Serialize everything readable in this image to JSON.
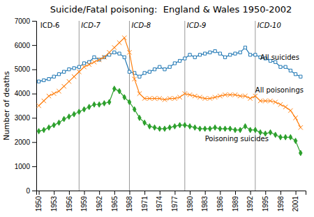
{
  "chart_data": {
    "type": "line",
    "title": "Suicide/Fatal poisoning:  England & Wales 1950-2002",
    "y_label": "Number of deaths",
    "xlim": [
      1949.5,
      2003
    ],
    "xticks": [
      1950,
      1953,
      1956,
      1959,
      1962,
      1965,
      1968,
      1971,
      1974,
      1977,
      1980,
      1983,
      1986,
      1989,
      1992,
      1995,
      1998,
      2001
    ],
    "ylim": [
      0,
      7000
    ],
    "yticks": [
      0,
      1000,
      2000,
      3000,
      4000,
      5000,
      6000,
      7000
    ],
    "grid": false,
    "x": [
      1950,
      1951,
      1952,
      1953,
      1954,
      1955,
      1956,
      1957,
      1958,
      1959,
      1960,
      1961,
      1962,
      1963,
      1964,
      1965,
      1966,
      1967,
      1968,
      1969,
      1970,
      1971,
      1972,
      1973,
      1974,
      1975,
      1976,
      1977,
      1978,
      1979,
      1980,
      1981,
      1982,
      1983,
      1984,
      1985,
      1986,
      1987,
      1988,
      1989,
      1990,
      1991,
      1992,
      1993,
      1994,
      1995,
      1996,
      1997,
      1998,
      1999,
      2000,
      2001,
      2002
    ],
    "series": [
      {
        "marker": "square",
        "values": [
          4500,
          4550,
          4600,
          4700,
          4800,
          4900,
          5000,
          5050,
          5100,
          5250,
          5300,
          5500,
          5400,
          5500,
          5600,
          5700,
          5650,
          5500,
          4900,
          4850,
          4700,
          4850,
          4900,
          5000,
          5100,
          5000,
          5100,
          5250,
          5350,
          5450,
          5600,
          5500,
          5600,
          5650,
          5700,
          5750,
          5650,
          5500,
          5600,
          5650,
          5700,
          5900,
          5600,
          5600,
          5500,
          5450,
          5350,
          5300,
          5100,
          5100,
          4950,
          4800,
          4700
        ]
      },
      {
        "marker": "x",
        "values": [
          3500,
          3700,
          3900,
          4000,
          4100,
          4300,
          4500,
          4700,
          4900,
          5100,
          5200,
          5300,
          5400,
          5500,
          5700,
          5900,
          6100,
          6300,
          5700,
          4600,
          4000,
          3800,
          3800,
          3800,
          3800,
          3750,
          3800,
          3800,
          3850,
          4000,
          3950,
          3900,
          3850,
          3800,
          3800,
          3850,
          3900,
          3950,
          3950,
          3950,
          3900,
          3900,
          3800,
          3900,
          3700,
          3700,
          3700,
          3650,
          3550,
          3450,
          3300,
          3000,
          2600
        ]
      },
      {
        "marker": "diamond",
        "values": [
          2450,
          2500,
          2600,
          2700,
          2800,
          2950,
          3050,
          3150,
          3250,
          3350,
          3450,
          3550,
          3550,
          3600,
          3650,
          4200,
          4100,
          3850,
          3650,
          3350,
          3000,
          2800,
          2650,
          2600,
          2550,
          2550,
          2600,
          2650,
          2700,
          2700,
          2650,
          2600,
          2550,
          2550,
          2550,
          2600,
          2550,
          2550,
          2550,
          2500,
          2500,
          2650,
          2500,
          2500,
          2400,
          2350,
          2400,
          2300,
          2200,
          2200,
          2200,
          2050,
          1550
        ]
      }
    ],
    "vlines": [
      {
        "x": 1958,
        "label": "ICD-7"
      },
      {
        "x": 1968,
        "label": "ICD-8"
      },
      {
        "x": 1979,
        "label": "ICD-9"
      },
      {
        "x": 1993,
        "label": "ICD-10"
      }
    ],
    "annotations": [
      {
        "text": "ICD-6",
        "x": 1950.3,
        "y": 6820
      },
      {
        "text": "All suicides",
        "x": 1994,
        "y": 5500
      },
      {
        "text": "All poisonings",
        "x": 1993,
        "y": 4150
      },
      {
        "text": "Poisoning suicides",
        "x": 1983,
        "y": 2150
      }
    ]
  }
}
